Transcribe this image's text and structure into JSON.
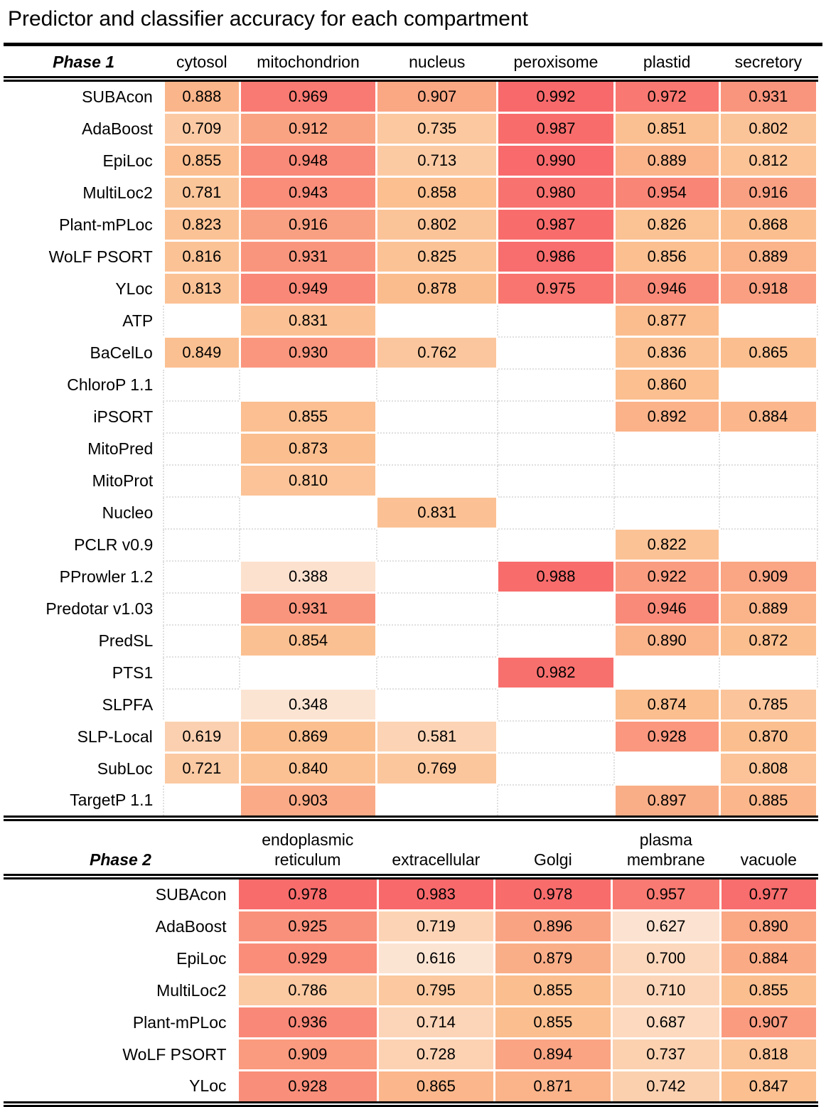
{
  "title": "Predictor and classifier accuracy for each compartment",
  "chart_data": {
    "type": "heatmap",
    "title": "Predictor and classifier accuracy for each compartment",
    "legend_position": "none",
    "grid": false,
    "color_scale": {
      "low_color": "#FCE4D3",
      "mid_color": "#FBBE8E",
      "high_color": "#F8696B",
      "note": "per-phase linear interpolation low→mid→high"
    },
    "phases": [
      {
        "label": "Phase 1",
        "columns": [
          "cytosol",
          "mitochondrion",
          "nucleus",
          "peroxisome",
          "plastid",
          "secretory"
        ],
        "scale": {
          "min": 0.348,
          "mid": 0.875,
          "max": 0.992
        },
        "rows": [
          {
            "predictor": "SUBAcon",
            "values": [
              0.888,
              0.969,
              0.907,
              0.992,
              0.972,
              0.931
            ]
          },
          {
            "predictor": "AdaBoost",
            "values": [
              0.709,
              0.912,
              0.735,
              0.987,
              0.851,
              0.802
            ]
          },
          {
            "predictor": "EpiLoc",
            "values": [
              0.855,
              0.948,
              0.713,
              0.99,
              0.889,
              0.812
            ]
          },
          {
            "predictor": "MultiLoc2",
            "values": [
              0.781,
              0.943,
              0.858,
              0.98,
              0.954,
              0.916
            ]
          },
          {
            "predictor": "Plant-mPLoc",
            "values": [
              0.823,
              0.916,
              0.802,
              0.987,
              0.826,
              0.868
            ]
          },
          {
            "predictor": "WoLF PSORT",
            "values": [
              0.816,
              0.931,
              0.825,
              0.986,
              0.856,
              0.889
            ]
          },
          {
            "predictor": "YLoc",
            "values": [
              0.813,
              0.949,
              0.878,
              0.975,
              0.946,
              0.918
            ]
          },
          {
            "predictor": "ATP",
            "values": [
              null,
              0.831,
              null,
              null,
              0.877,
              null
            ]
          },
          {
            "predictor": "BaCelLo",
            "values": [
              0.849,
              0.93,
              0.762,
              null,
              0.836,
              0.865
            ]
          },
          {
            "predictor": "ChloroP 1.1",
            "values": [
              null,
              null,
              null,
              null,
              0.86,
              null
            ]
          },
          {
            "predictor": "iPSORT",
            "values": [
              null,
              0.855,
              null,
              null,
              0.892,
              0.884
            ]
          },
          {
            "predictor": "MitoPred",
            "values": [
              null,
              0.873,
              null,
              null,
              null,
              null
            ]
          },
          {
            "predictor": "MitoProt",
            "values": [
              null,
              0.81,
              null,
              null,
              null,
              null
            ]
          },
          {
            "predictor": "Nucleo",
            "values": [
              null,
              null,
              0.831,
              null,
              null,
              null
            ]
          },
          {
            "predictor": "PCLR v0.9",
            "values": [
              null,
              null,
              null,
              null,
              0.822,
              null
            ]
          },
          {
            "predictor": "PProwler 1.2",
            "values": [
              null,
              0.388,
              null,
              0.988,
              0.922,
              0.909
            ]
          },
          {
            "predictor": "Predotar v1.03",
            "values": [
              null,
              0.931,
              null,
              null,
              0.946,
              0.889
            ]
          },
          {
            "predictor": "PredSL",
            "values": [
              null,
              0.854,
              null,
              null,
              0.89,
              0.872
            ]
          },
          {
            "predictor": "PTS1",
            "values": [
              null,
              null,
              null,
              0.982,
              null,
              null
            ]
          },
          {
            "predictor": "SLPFA",
            "values": [
              null,
              0.348,
              null,
              null,
              0.874,
              0.785
            ]
          },
          {
            "predictor": "SLP-Local",
            "values": [
              0.619,
              0.869,
              0.581,
              null,
              0.928,
              0.87
            ]
          },
          {
            "predictor": "SubLoc",
            "values": [
              0.721,
              0.84,
              0.769,
              null,
              null,
              0.808
            ]
          },
          {
            "predictor": "TargetP 1.1",
            "values": [
              null,
              0.903,
              null,
              null,
              0.897,
              0.885
            ]
          }
        ]
      },
      {
        "label": "Phase 2",
        "columns": [
          "endoplasmic\nreticulum",
          "extracellular",
          "Golgi",
          "plasma\nmembrane",
          "vacuole"
        ],
        "scale": {
          "min": 0.616,
          "mid": 0.855,
          "max": 0.983
        },
        "rows": [
          {
            "predictor": "SUBAcon",
            "values": [
              0.978,
              0.983,
              0.978,
              0.957,
              0.977
            ]
          },
          {
            "predictor": "AdaBoost",
            "values": [
              0.925,
              0.719,
              0.896,
              0.627,
              0.89
            ]
          },
          {
            "predictor": "EpiLoc",
            "values": [
              0.929,
              0.616,
              0.879,
              0.7,
              0.884
            ]
          },
          {
            "predictor": "MultiLoc2",
            "values": [
              0.786,
              0.795,
              0.855,
              0.71,
              0.855
            ]
          },
          {
            "predictor": "Plant-mPLoc",
            "values": [
              0.936,
              0.714,
              0.855,
              0.687,
              0.907
            ]
          },
          {
            "predictor": "WoLF PSORT",
            "values": [
              0.909,
              0.728,
              0.894,
              0.737,
              0.818
            ]
          },
          {
            "predictor": "YLoc",
            "values": [
              0.928,
              0.865,
              0.871,
              0.742,
              0.847
            ]
          }
        ]
      }
    ]
  }
}
